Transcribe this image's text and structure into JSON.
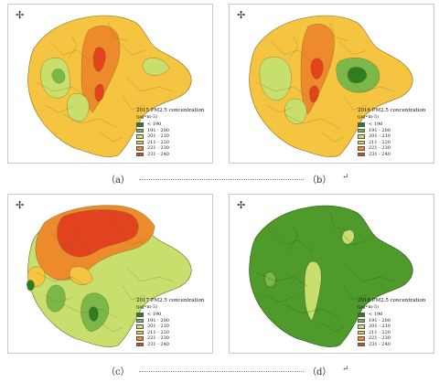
{
  "compass_glyph": "✢",
  "captions": {
    "row1": {
      "left": "（a）",
      "right": "（b）",
      "arrow": "↵"
    },
    "row2": {
      "left": "（c）",
      "right": "（d）",
      "arrow": "↵"
    }
  },
  "panels": [
    {
      "id": "a",
      "legend_title": "2015 PM2.5 concentration",
      "legend_unit": "(μg•m-3)",
      "legend_items": [
        {
          "label": "< 190",
          "color": "#2e7d1f"
        },
        {
          "label": "191 - 200",
          "color": "#7bb84a"
        },
        {
          "label": "201 - 210",
          "color": "#c8df6e"
        },
        {
          "label": "211 - 220",
          "color": "#f5c542"
        },
        {
          "label": "221 - 230",
          "color": "#ec8a2c"
        },
        {
          "label": "231 - 240",
          "color": "#e2421d"
        }
      ]
    },
    {
      "id": "b",
      "legend_title": "2016 PM2.5 concentration",
      "legend_unit": "(μg•m-3)",
      "legend_items": [
        {
          "label": "< 190",
          "color": "#2e7d1f"
        },
        {
          "label": "191 - 200",
          "color": "#7bb84a"
        },
        {
          "label": "201 - 210",
          "color": "#c8df6e"
        },
        {
          "label": "211 - 220",
          "color": "#f5c542"
        },
        {
          "label": "221 - 230",
          "color": "#ec8a2c"
        },
        {
          "label": "231 - 240",
          "color": "#e2421d"
        }
      ]
    },
    {
      "id": "c",
      "legend_title": "2017 PM2.5 concentration",
      "legend_unit": "(μg•m-3)",
      "legend_items": [
        {
          "label": "< 190",
          "color": "#2e7d1f"
        },
        {
          "label": "191 - 200",
          "color": "#7bb84a"
        },
        {
          "label": "201 - 210",
          "color": "#c8df6e"
        },
        {
          "label": "211 - 220",
          "color": "#f5c542"
        },
        {
          "label": "221 - 230",
          "color": "#ec8a2c"
        },
        {
          "label": "231 - 240",
          "color": "#e2421d"
        }
      ]
    },
    {
      "id": "d",
      "legend_title": "2018 PM2.5 concentration",
      "legend_unit": "(μg•m-3)",
      "legend_items": [
        {
          "label": "< 190",
          "color": "#2e7d1f"
        },
        {
          "label": "191 - 200",
          "color": "#7bb84a"
        },
        {
          "label": "201 - 210",
          "color": "#c8df6e"
        },
        {
          "label": "211 - 220",
          "color": "#f5c542"
        },
        {
          "label": "221 - 230",
          "color": "#ec8a2c"
        },
        {
          "label": "231 - 240",
          "color": "#e2421d"
        }
      ]
    }
  ]
}
